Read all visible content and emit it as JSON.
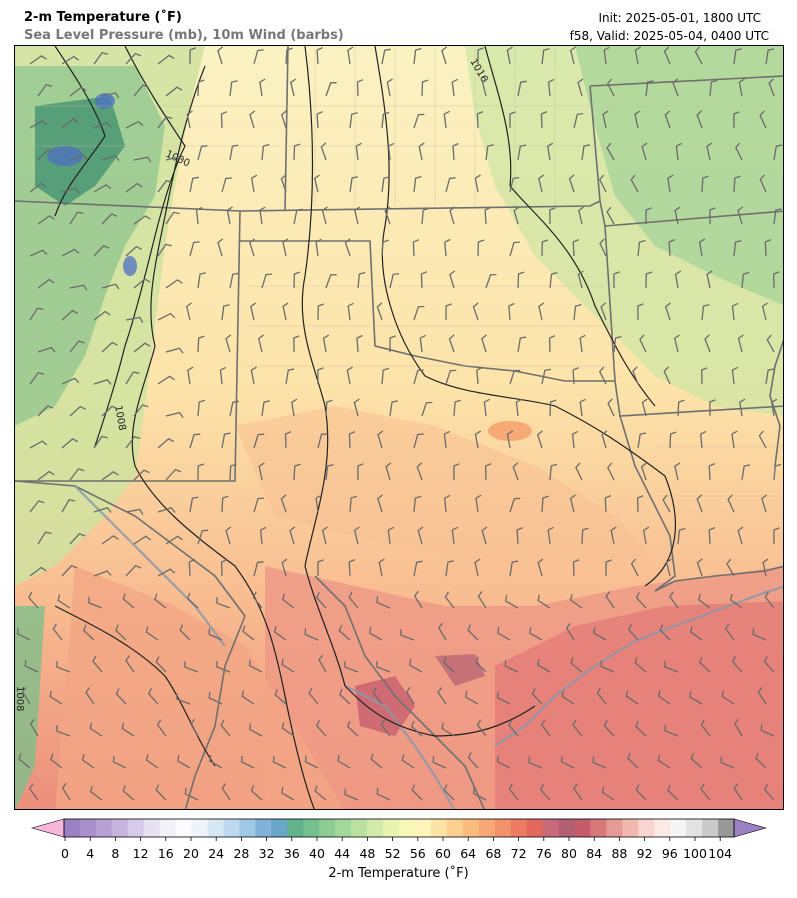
{
  "header": {
    "title": "2-m Temperature (˚F)",
    "subtitle": "Sea Level Pressure (mb), 10m Wind (barbs)",
    "init": "Init: 2025-05-01, 1800 UTC",
    "valid": "f58, Valid: 2025-05-04, 0400 UTC"
  },
  "map": {
    "isobar_labels": [
      "1016",
      "1000",
      "1008",
      "1008"
    ]
  },
  "colorbar": {
    "label": "2-m Temperature (˚F)",
    "ticks": [
      "0",
      "4",
      "8",
      "12",
      "16",
      "20",
      "24",
      "28",
      "32",
      "36",
      "40",
      "44",
      "48",
      "52",
      "56",
      "60",
      "64",
      "68",
      "72",
      "76",
      "80",
      "84",
      "88",
      "92",
      "96",
      "100",
      "104"
    ],
    "colors": [
      "#9b80c4",
      "#a98fcc",
      "#b7a1d4",
      "#c5b5dd",
      "#d6cbe8",
      "#e6e0f1",
      "#f3f1f8",
      "#fbfbfd",
      "#eef4fa",
      "#d7e8f4",
      "#bcd9ee",
      "#9ec8e6",
      "#7fb3da",
      "#6aa6c8",
      "#62b28d",
      "#74c08f",
      "#8ccc94",
      "#a4d79a",
      "#bbe1a0",
      "#d3eba8",
      "#e8f3b0",
      "#f6f8b8",
      "#fdf3bb",
      "#fde4a6",
      "#fcd18f",
      "#fbbd7d",
      "#f8a874",
      "#f4926c",
      "#ee7c65",
      "#e4685e",
      "#c96a7a",
      "#b35f74",
      "#c45c6c",
      "#d87878",
      "#e69a94",
      "#f0b8b0",
      "#f7d6cf",
      "#fbe9e5",
      "#f5f5f5",
      "#e3e3e3",
      "#cacaca",
      "#999999"
    ],
    "under_color": "#f7b6d9",
    "over_color": "#9b80c4"
  }
}
